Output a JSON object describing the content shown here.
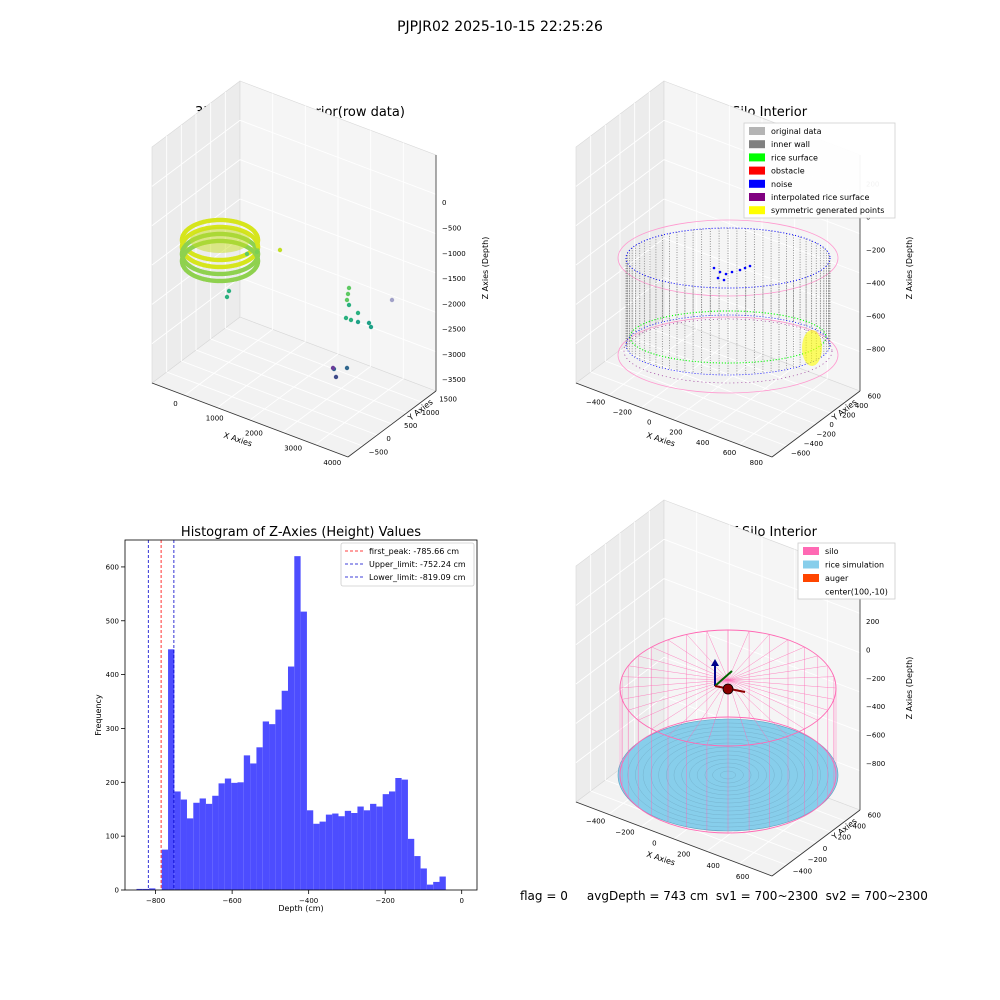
{
  "suptitle": "PJPJR02 2025-10-15 22:25:26",
  "footer": "flag = 0     avgDepth = 743 cm  sv1 = 700~2300  sv2 = 700~2300",
  "colors": {
    "hist_bar": "#4d4dff",
    "first_peak_line": "#ff0000",
    "limit_line": "#0000cc",
    "pane": "#f2f2f2",
    "pane_edge": "#d8d8d8"
  },
  "chart_data": [
    {
      "type": "scatter",
      "title": "3D Plot of Silo Interior(row data)",
      "xlabel": "X Axies",
      "ylabel": "Y Axies",
      "zlabel": "Z Axies (Depth)",
      "xlim": [
        -500,
        4200
      ],
      "ylim": [
        -700,
        1800
      ],
      "zlim": [
        -3700,
        200
      ],
      "xticks": [
        "0",
        "1000",
        "2000",
        "3000",
        "4000"
      ],
      "yticks": [
        "−500",
        "0",
        "500",
        "1000",
        "1500"
      ],
      "zticks": [
        "0",
        "−500",
        "−1000",
        "−1500",
        "−2000",
        "−2500",
        "−3000",
        "−3500"
      ],
      "colormap": "viridis",
      "grid": true
    },
    {
      "type": "scatter",
      "title": "3D classify of Silo Interior",
      "xlabel": "X Axies",
      "ylabel": "Y Axies",
      "zlabel": "Z Axies (Depth)",
      "xticks": [
        "−400",
        "−200",
        "0",
        "200",
        "400",
        "600",
        "800"
      ],
      "yticks": [
        "−600",
        "−400",
        "−200",
        "0",
        "200",
        "400",
        "600"
      ],
      "zticks": [
        "200",
        "0",
        "−200",
        "−400",
        "−600",
        "−800"
      ],
      "legend": [
        {
          "label": "original data",
          "color": "#b4b4b4"
        },
        {
          "label": "inner wall",
          "color": "#808080"
        },
        {
          "label": "rice surface",
          "color": "#00ff00"
        },
        {
          "label": "obstacle",
          "color": "#ff0000"
        },
        {
          "label": "noise",
          "color": "#0000ff"
        },
        {
          "label": "interpolated rice surface",
          "color": "#800080"
        },
        {
          "label": "symmetric generated points",
          "color": "#ffff00"
        }
      ],
      "legend_loc": "upper right",
      "grid": true
    },
    {
      "type": "bar",
      "title": "Histogram of Z-Axies (Height) Values",
      "xlabel": "Depth (cm)",
      "ylabel": "Frequency",
      "xlim": [
        -880,
        40
      ],
      "ylim": [
        0,
        650
      ],
      "xticks": [
        -800,
        -600,
        -400,
        -200,
        0
      ],
      "xtick_labels": [
        "−800",
        "−600",
        "−400",
        "−200",
        "0"
      ],
      "yticks": [
        0,
        100,
        200,
        300,
        400,
        500,
        600
      ],
      "bin_start": -850,
      "bin_width": 16.5,
      "values": [
        2,
        2,
        3,
        0,
        75,
        447,
        183,
        168,
        133,
        162,
        170,
        160,
        175,
        198,
        207,
        199,
        200,
        250,
        235,
        265,
        313,
        308,
        335,
        370,
        415,
        620,
        517,
        148,
        123,
        127,
        140,
        142,
        137,
        147,
        143,
        155,
        148,
        160,
        155,
        178,
        183,
        208,
        205,
        95,
        63,
        40,
        10,
        15,
        25
      ],
      "vlines": [
        {
          "label": "first_peak: -785.66 cm",
          "x": -785.66,
          "color": "#ff0000"
        },
        {
          "label": "Upper_limit: -752.24 cm",
          "x": -752.24,
          "color": "#0000cc"
        },
        {
          "label": "Lower_limit: -819.09 cm",
          "x": -819.09,
          "color": "#0000cc"
        }
      ],
      "legend_loc": "upper right",
      "grid": false
    },
    {
      "type": "scatter",
      "title": "3D simulation of Silo Interior",
      "xlabel": "X Axies",
      "ylabel": "Y Axies",
      "zlabel": "Z Axies (Depth)",
      "xticks": [
        "−400",
        "−200",
        "0",
        "200",
        "400",
        "600"
      ],
      "yticks": [
        "−400",
        "−200",
        "0",
        "200",
        "400",
        "600"
      ],
      "zticks": [
        "400",
        "200",
        "0",
        "−200",
        "−400",
        "−600",
        "−800"
      ],
      "legend": [
        {
          "label": "silo",
          "color": "#ff69b4"
        },
        {
          "label": "rice simulation",
          "color": "#87ceeb"
        },
        {
          "label": "auger",
          "color": "#ff4500"
        },
        {
          "label": "center(100,-10)",
          "color": ""
        }
      ],
      "legend_loc": "upper right",
      "grid": true
    }
  ]
}
